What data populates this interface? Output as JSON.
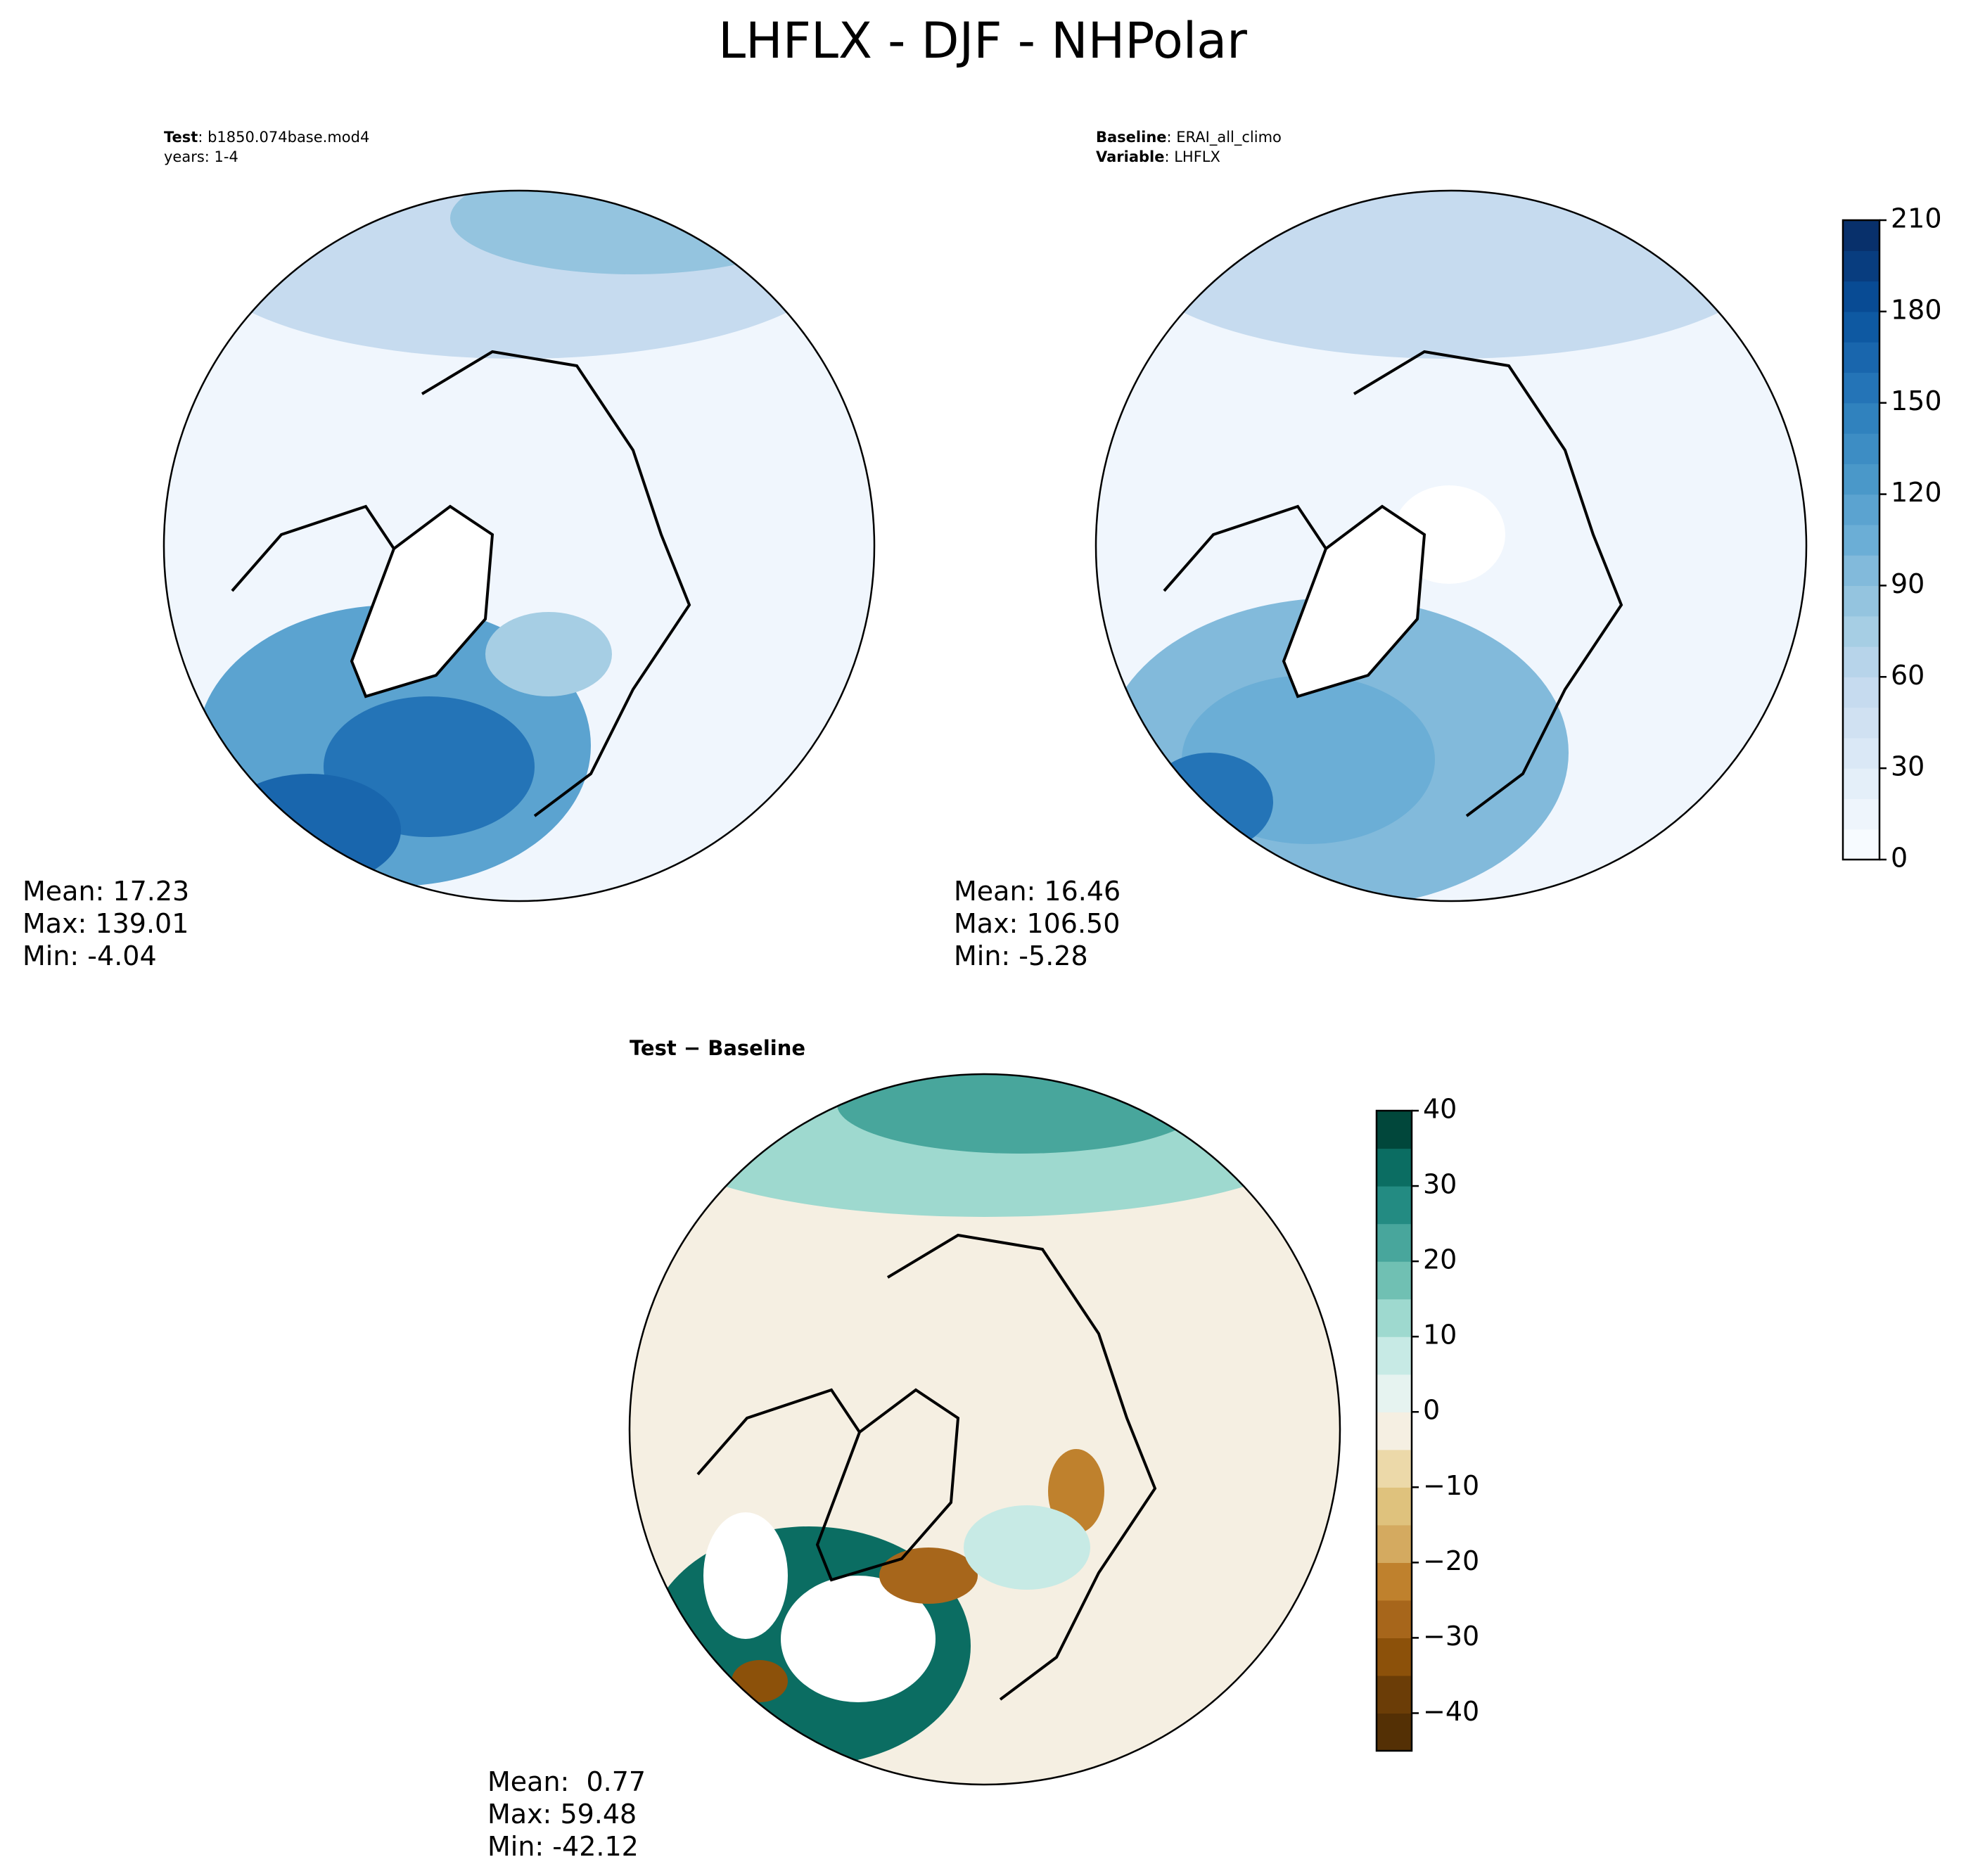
{
  "title": "LHFLX - DJF - NHPolar",
  "panels": [
    {
      "lines": [
        {
          "key": "Test",
          "value": ": b1850.074base.mod4"
        },
        {
          "value": "years: 1-4"
        }
      ],
      "stats": [
        "Mean: 17.23",
        "Max: 139.01",
        "Min: -4.04"
      ]
    },
    {
      "lines": [
        {
          "key": "Baseline",
          "value": ": ERAI_all_climo"
        },
        {
          "key": "Variable",
          "value": ": LHFLX"
        }
      ],
      "stats": [
        "Mean: 16.46",
        "Max: 106.50",
        "Min: -5.28"
      ]
    },
    {
      "lines": [
        {
          "key": "Test − Baseline"
        }
      ],
      "stats": [
        "Mean:  0.77",
        "Max: 59.48",
        "Min: -42.12"
      ]
    }
  ],
  "colorbars": [
    {
      "range": [
        0,
        210
      ],
      "ticks": [
        0,
        30,
        60,
        90,
        120,
        150,
        180,
        210
      ],
      "colors": [
        "#f7fbff",
        "#eef5fc",
        "#e4eff9",
        "#dae8f6",
        "#d0e1f2",
        "#c6dbef",
        "#b7d4ea",
        "#a6cee4",
        "#94c4df",
        "#82badb",
        "#6baed6",
        "#5ba3d0",
        "#4a98c9",
        "#3d8dc4",
        "#3082be",
        "#2474b7",
        "#1966ad",
        "#0e59a2",
        "#084b94",
        "#083d7f",
        "#08306b"
      ]
    },
    {
      "range": [
        -45,
        40
      ],
      "ticks": [
        {
          "value": -40,
          "label": "−40"
        },
        {
          "value": -30,
          "label": "−30"
        },
        {
          "value": -20,
          "label": "−20"
        },
        {
          "value": -10,
          "label": "−10"
        },
        0,
        10,
        20,
        30,
        40
      ],
      "colors": [
        "#543005",
        "#6b3d07",
        "#8c510a",
        "#a7661b",
        "#bf812d",
        "#d4aa60",
        "#dfc27d",
        "#ecd9a9",
        "#f5efe2",
        "#e6f3f0",
        "#c7eae5",
        "#9ed9cf",
        "#70c0b3",
        "#48a69c",
        "#238b82",
        "#0b6d62",
        "#01473b"
      ]
    }
  ]
}
